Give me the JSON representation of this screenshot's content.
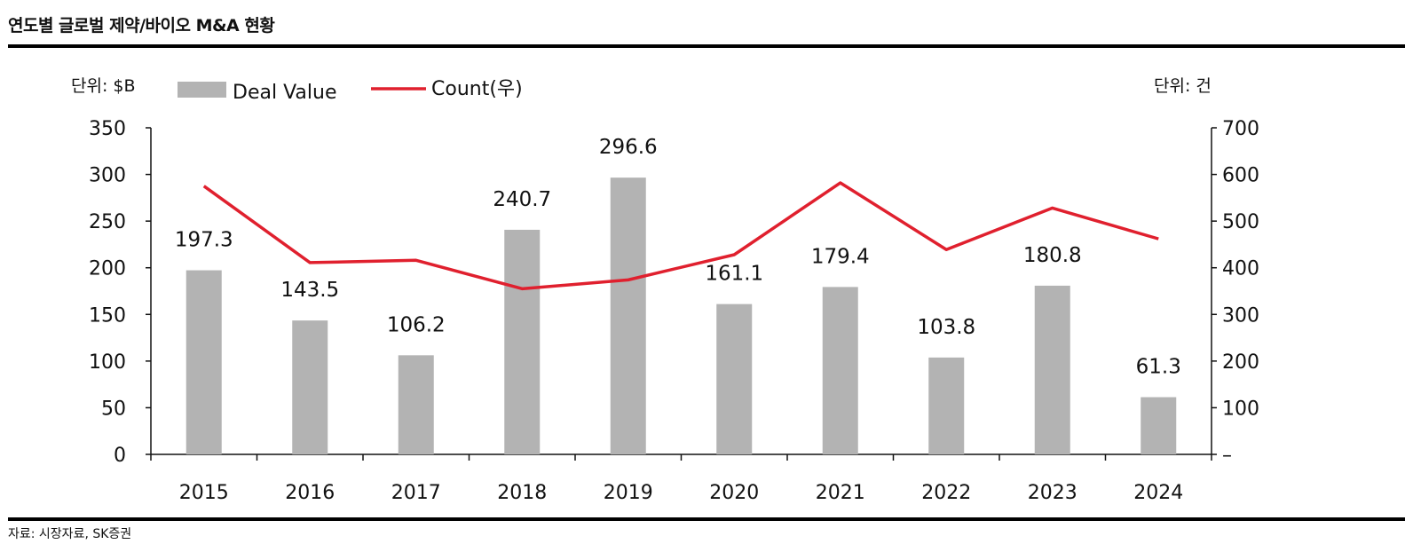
{
  "title": "연도별 글로벌 제약/바이오 M&A 현황",
  "source": "자료: 시장자료, SK증권",
  "colors": {
    "bar": "#b3b3b3",
    "line": "#e0202e"
  },
  "chart_data": {
    "type": "bar+line",
    "title": "연도별 글로벌 제약/바이오 M&A 현황",
    "categories": [
      "2015",
      "2016",
      "2017",
      "2018",
      "2019",
      "2020",
      "2021",
      "2022",
      "2023",
      "2024"
    ],
    "left_unit": "단위: $B",
    "right_unit": "단위: 건",
    "ylim_left": [
      0,
      350
    ],
    "ylim_right": [
      0,
      700
    ],
    "left_ticks": [
      "0",
      "50",
      "100",
      "150",
      "200",
      "250",
      "300",
      "350"
    ],
    "right_ticks": [
      "–",
      "100",
      "200",
      "300",
      "400",
      "500",
      "600",
      "700"
    ],
    "legend": {
      "position": "top",
      "entries": [
        "Deal Value",
        "Count(우)"
      ]
    },
    "series": [
      {
        "name": "Deal Value",
        "type": "bar",
        "axis": "left",
        "values": [
          197.3,
          143.5,
          106.2,
          240.7,
          296.6,
          161.1,
          179.4,
          103.8,
          180.8,
          61.3
        ],
        "labels": [
          "197.3",
          "143.5",
          "106.2",
          "240.7",
          "296.6",
          "161.1",
          "179.4",
          "103.8",
          "180.8",
          "61.3"
        ]
      },
      {
        "name": "Count(우)",
        "type": "line",
        "axis": "right",
        "values": [
          575,
          411,
          416,
          355,
          374,
          428,
          582,
          439,
          528,
          462
        ]
      }
    ]
  }
}
